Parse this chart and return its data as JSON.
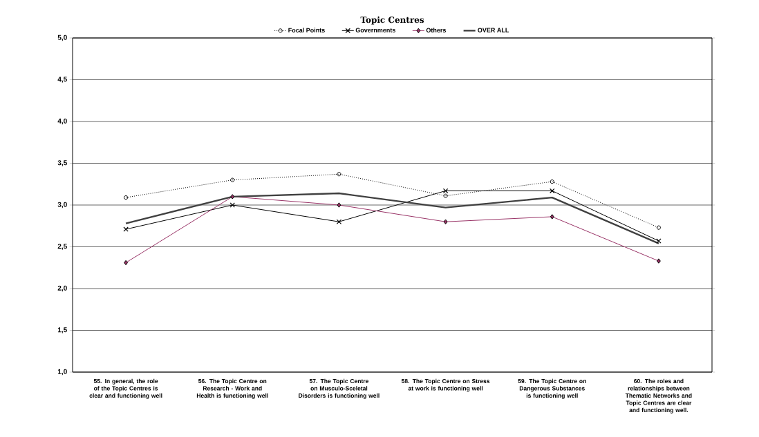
{
  "chart_data": {
    "type": "line",
    "title": "Topic Centres",
    "categories": [
      "55. In general, the role of the Topic Centres is clear and functioning well",
      "56. The Topic Centre on Research - Work and Health is functioning well",
      "57. The Topic Centre on Musculo-Sceletal Disorders is functioning well",
      "58. The Topic Centre on Stress at work is functioning well",
      "59. The Topic Centre on Dangerous Substances is functioning well",
      "60. The roles and relationships between Thematic Networks and Topic Centres are clear and functioning well."
    ],
    "series": [
      {
        "name": "Focal Points",
        "color": "#000000",
        "marker": "circle",
        "line_style": "dotted",
        "values": [
          3.09,
          3.3,
          3.37,
          3.11,
          3.28,
          2.73
        ]
      },
      {
        "name": "Governments",
        "color": "#000000",
        "marker": "cross",
        "line_style": "solid",
        "values": [
          2.71,
          3.0,
          2.8,
          3.17,
          3.17,
          2.57
        ]
      },
      {
        "name": "Others",
        "color": "#993366",
        "marker": "diamond",
        "line_style": "solid",
        "values": [
          2.31,
          3.1,
          3.0,
          2.8,
          2.86,
          2.33
        ]
      },
      {
        "name": "OVER ALL",
        "color": "#404040",
        "marker": "none",
        "line_style": "solid",
        "values": [
          2.78,
          3.1,
          3.14,
          2.97,
          3.09,
          2.54
        ]
      }
    ],
    "ylim": [
      1.0,
      5.0
    ],
    "yticks": [
      {
        "value": 1.0,
        "label": "1,0"
      },
      {
        "value": 1.5,
        "label": "1,5"
      },
      {
        "value": 2.0,
        "label": "2,0"
      },
      {
        "value": 2.5,
        "label": "2,5"
      },
      {
        "value": 3.0,
        "label": "3,0"
      },
      {
        "value": 3.5,
        "label": "3,5"
      },
      {
        "value": 4.0,
        "label": "4,0"
      },
      {
        "value": 4.5,
        "label": "4,5"
      },
      {
        "value": 5.0,
        "label": "5,0"
      }
    ],
    "grid": "y",
    "legend": "top"
  }
}
